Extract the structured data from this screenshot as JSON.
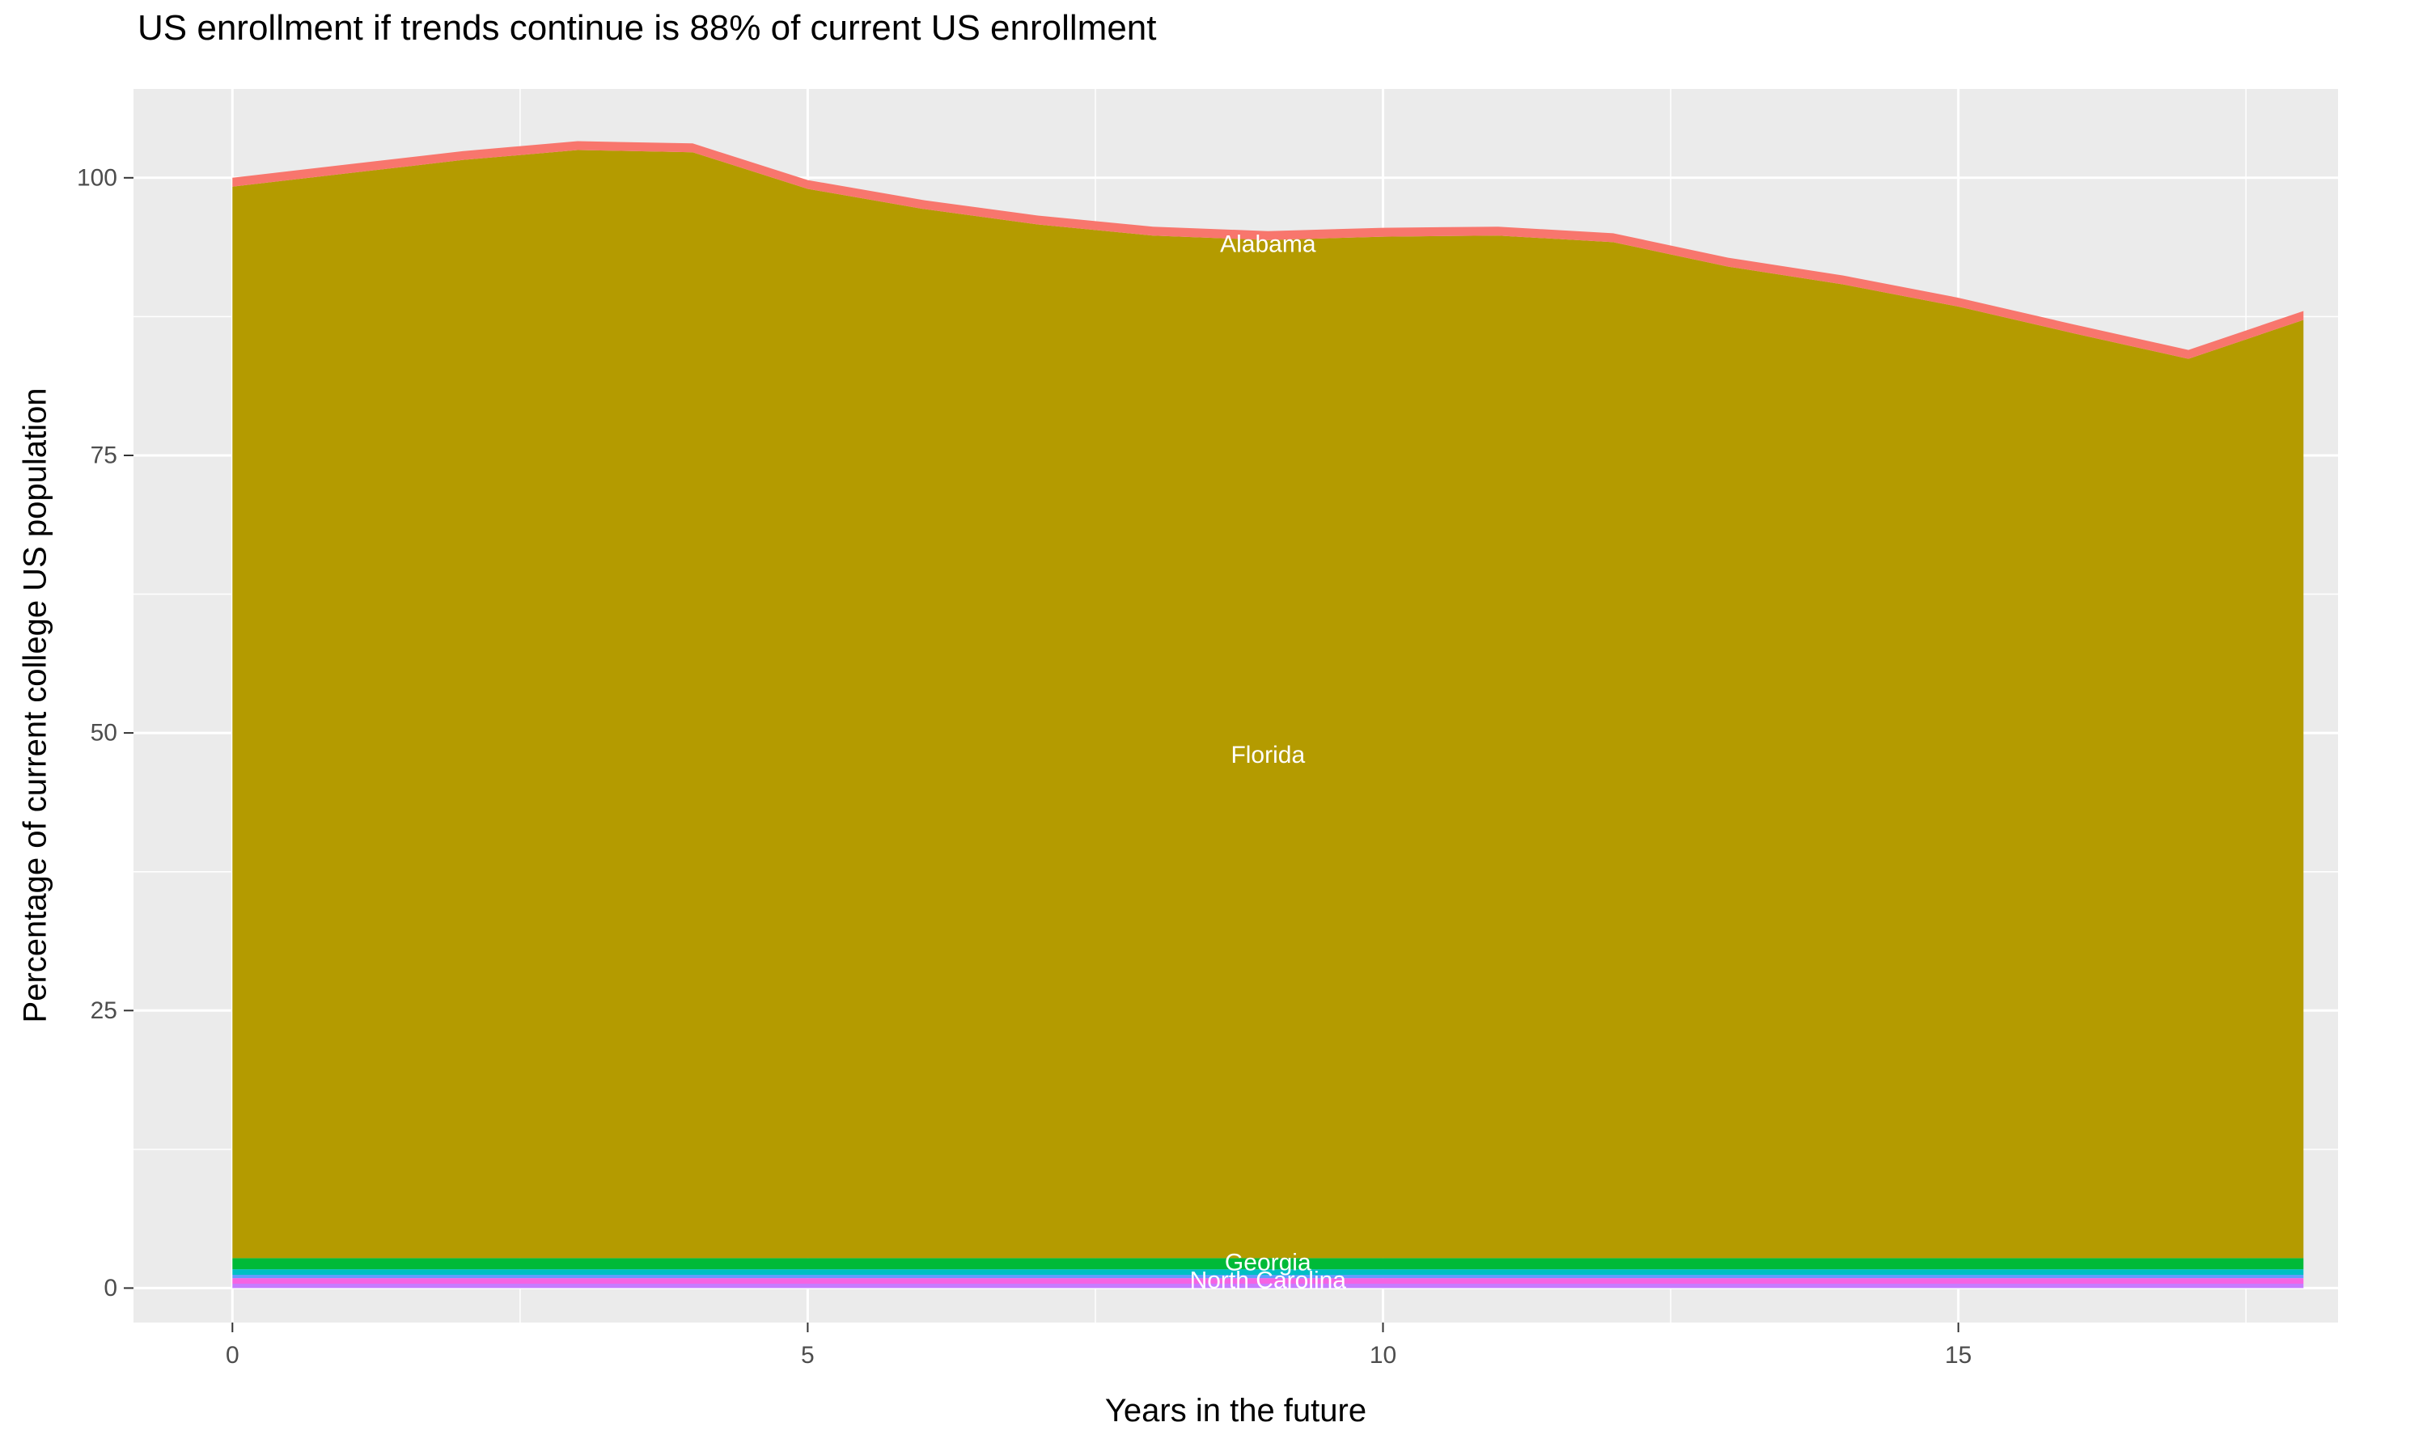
{
  "chart_data": {
    "type": "area",
    "stacked": true,
    "title": "US enrollment if trends continue is 88% of current US enrollment",
    "xlabel": "Years in the future",
    "ylabel": "Percentage of current college US population",
    "x": [
      0,
      1,
      2,
      3,
      4,
      5,
      6,
      7,
      8,
      9,
      10,
      11,
      12,
      13,
      14,
      15,
      16,
      17,
      18
    ],
    "x_ticks": [
      0,
      5,
      10,
      15
    ],
    "y_ticks": [
      0,
      25,
      50,
      75,
      100
    ],
    "xlim": [
      -0.86,
      18.3
    ],
    "ylim": [
      -3.1,
      108
    ],
    "panel_bg": "#EBEBEB",
    "grid_color": "#FFFFFF",
    "tick_color": "#333333",
    "tick_label_color": "#4D4D4D",
    "legend": "none",
    "series": [
      {
        "name": "Alabama",
        "color": "#F8766D",
        "values": [
          0.8,
          0.8,
          0.8,
          0.8,
          0.8,
          0.8,
          0.8,
          0.8,
          0.8,
          0.8,
          0.8,
          0.8,
          0.8,
          0.8,
          0.8,
          0.8,
          0.8,
          0.8,
          0.8
        ],
        "label": {
          "text": "Alabama",
          "x": 9,
          "y": 94
        }
      },
      {
        "name": "Florida",
        "color": "#B49B00",
        "values": [
          96.5,
          97.7,
          98.9,
          99.8,
          99.6,
          96.3,
          94.5,
          93.1,
          92.1,
          91.7,
          92.0,
          92.1,
          91.5,
          89.3,
          87.7,
          85.7,
          83.3,
          81.0,
          84.5
        ],
        "label": {
          "text": "Florida",
          "x": 9,
          "y": 48
        }
      },
      {
        "name": "Georgia",
        "color": "#00BA38",
        "values": [
          1.0,
          1.0,
          1.0,
          1.0,
          1.0,
          1.0,
          1.0,
          1.0,
          1.0,
          1.0,
          1.0,
          1.0,
          1.0,
          1.0,
          1.0,
          1.0,
          1.0,
          1.0,
          1.0
        ],
        "label": {
          "text": "Georgia",
          "x": 9,
          "y": 2.3
        }
      },
      {
        "name": "unlabeled-teal",
        "color": "#00BFC4",
        "values": [
          0.5,
          0.5,
          0.5,
          0.5,
          0.5,
          0.5,
          0.5,
          0.5,
          0.5,
          0.5,
          0.5,
          0.5,
          0.5,
          0.5,
          0.5,
          0.5,
          0.5,
          0.5,
          0.5
        ],
        "label": null
      },
      {
        "name": "unlabeled-blue",
        "color": "#619CFF",
        "values": [
          0.3,
          0.3,
          0.3,
          0.3,
          0.3,
          0.3,
          0.3,
          0.3,
          0.3,
          0.3,
          0.3,
          0.3,
          0.3,
          0.3,
          0.3,
          0.3,
          0.3,
          0.3,
          0.3
        ],
        "label": null
      },
      {
        "name": "North Carolina",
        "color": "#F564E3",
        "values": [
          0.5,
          0.5,
          0.5,
          0.5,
          0.5,
          0.5,
          0.5,
          0.5,
          0.5,
          0.5,
          0.5,
          0.5,
          0.5,
          0.5,
          0.5,
          0.5,
          0.5,
          0.5,
          0.5
        ],
        "label": {
          "text": "North Carolina",
          "x": 9,
          "y": 0.7
        }
      },
      {
        "name": "unlabeled-violet",
        "color": "#C77CFF",
        "values": [
          0.4,
          0.4,
          0.4,
          0.4,
          0.4,
          0.4,
          0.4,
          0.4,
          0.4,
          0.4,
          0.4,
          0.4,
          0.4,
          0.4,
          0.4,
          0.4,
          0.4,
          0.4,
          0.4
        ],
        "label": null
      }
    ],
    "stack_totals": [
      100.0,
      101.2,
      102.4,
      103.3,
      103.1,
      99.8,
      98.0,
      96.6,
      95.6,
      95.2,
      95.5,
      95.6,
      95.0,
      92.8,
      91.2,
      89.2,
      86.8,
      84.5,
      88.0
    ]
  }
}
